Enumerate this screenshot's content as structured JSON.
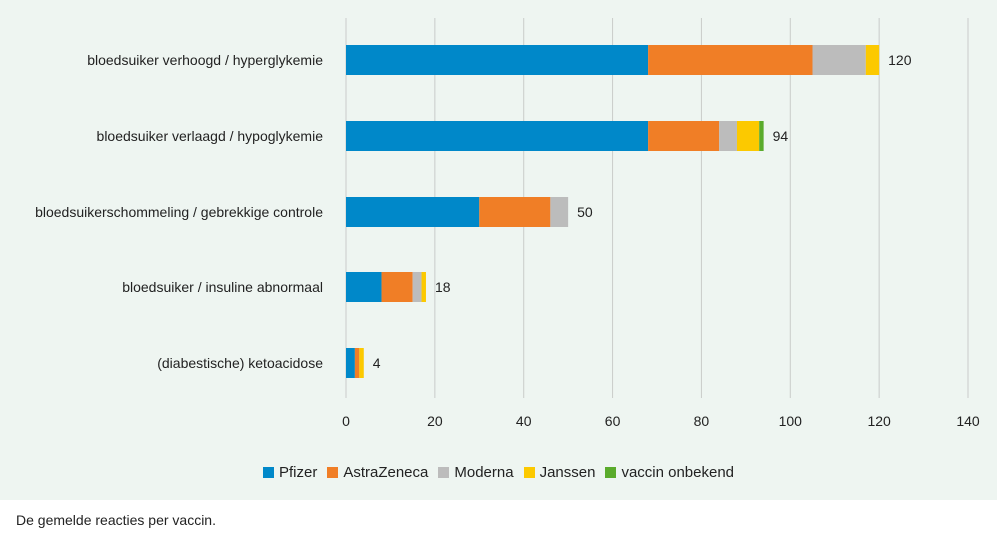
{
  "chart_data": {
    "type": "bar",
    "orientation": "horizontal",
    "stacked": true,
    "categories": [
      "bloedsuiker verhoogd / hyperglykemie",
      "bloedsuiker verlaagd / hypoglykemie",
      "bloedsuikerschommeling / gebrekkige controle",
      "bloedsuiker / insuline abnormaal",
      "(diabestische) ketoacidose"
    ],
    "series": [
      {
        "name": "Pfizer",
        "color": "#0088c9",
        "values": [
          68,
          68,
          30,
          8,
          2
        ]
      },
      {
        "name": "AstraZeneca",
        "color": "#f07e26",
        "values": [
          37,
          16,
          16,
          7,
          1
        ]
      },
      {
        "name": "Moderna",
        "color": "#bcbcbc",
        "values": [
          12,
          4,
          4,
          2,
          0
        ]
      },
      {
        "name": "Janssen",
        "color": "#fcc900",
        "values": [
          3,
          5,
          0,
          1,
          1
        ]
      },
      {
        "name": "vaccin onbekend",
        "color": "#5aab2c",
        "values": [
          0,
          1,
          0,
          0,
          0
        ]
      }
    ],
    "totals": [
      "120",
      "94",
      "50",
      "18",
      "4"
    ],
    "xticks": [
      "0",
      "20",
      "40",
      "60",
      "80",
      "100",
      "120",
      "140"
    ],
    "xlim": [
      0,
      140
    ],
    "grid": "vertical",
    "legend_position": "bottom-center",
    "title": "",
    "xlabel": "",
    "ylabel": ""
  },
  "caption": "De gemelde reacties per vaccin."
}
